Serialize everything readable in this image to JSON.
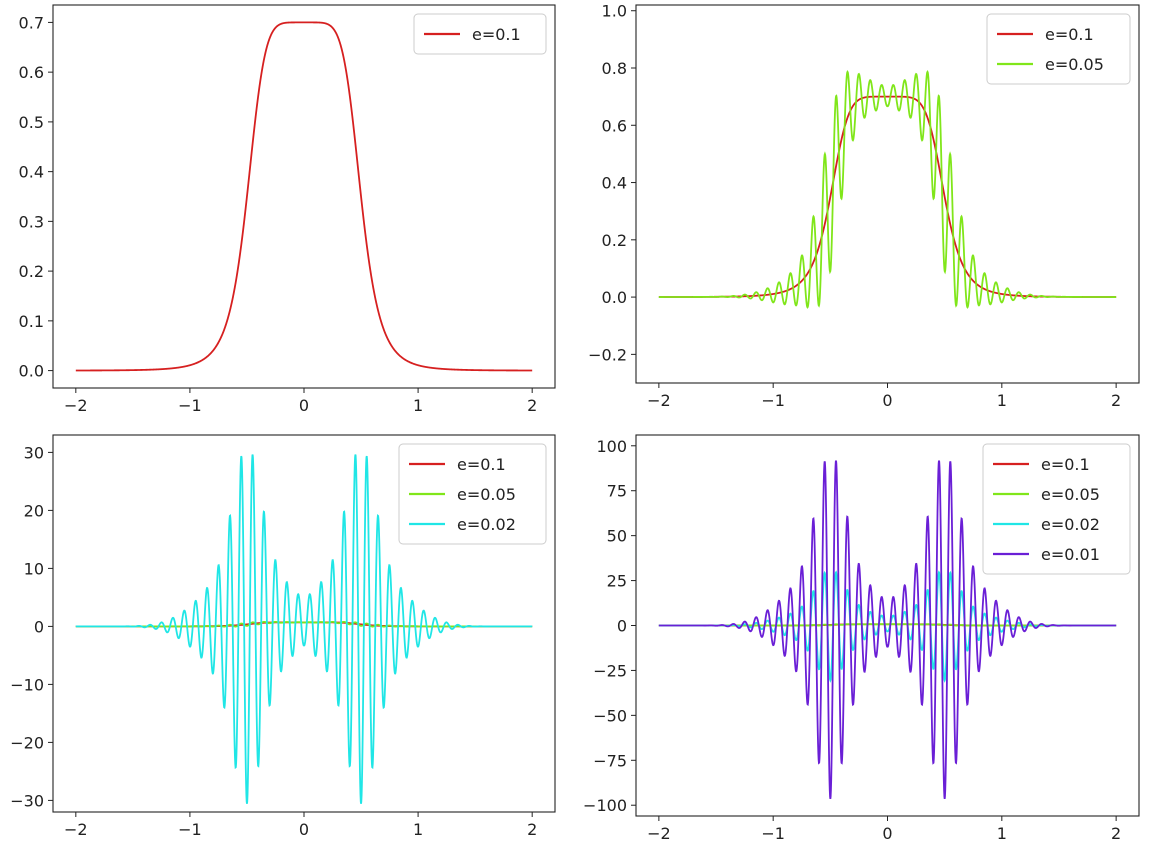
{
  "chart_data": [
    {
      "type": "line",
      "xlim": [
        -2.2,
        2.2
      ],
      "ylim": [
        -0.035,
        0.735
      ],
      "xticks": [
        -2,
        -1,
        0,
        1,
        2
      ],
      "xtick_labels": [
        "−2",
        "−1",
        "0",
        "1",
        "2"
      ],
      "yticks": [
        0.0,
        0.1,
        0.2,
        0.3,
        0.4,
        0.5,
        0.6,
        0.7
      ],
      "ytick_labels": [
        "0.0",
        "0.1",
        "0.2",
        "0.3",
        "0.4",
        "0.5",
        "0.6",
        "0.7"
      ],
      "legend_position": "top-right",
      "series": [
        {
          "name": "e=0.1",
          "color": "#d62020",
          "amplitude": 0,
          "peak": 0.7,
          "wave_number": 0
        }
      ]
    },
    {
      "type": "line",
      "xlim": [
        -2.2,
        2.2
      ],
      "ylim": [
        -0.3,
        1.02
      ],
      "xticks": [
        -2,
        -1,
        0,
        1,
        2
      ],
      "xtick_labels": [
        "−2",
        "−1",
        "0",
        "1",
        "2"
      ],
      "yticks": [
        -0.2,
        0.0,
        0.2,
        0.4,
        0.6,
        0.8,
        1.0
      ],
      "ytick_labels": [
        "−0.2",
        "0.0",
        "0.2",
        "0.4",
        "0.6",
        "0.8",
        "1.0"
      ],
      "legend_position": "top-right",
      "series": [
        {
          "name": "e=0.1",
          "color": "#d62020",
          "amplitude": 0,
          "peak": 0.7,
          "wave_number": 0
        },
        {
          "name": "e=0.05",
          "color": "#80e61a",
          "amplitude": 0.26,
          "peak": 0.7,
          "wave_number": 20
        }
      ]
    },
    {
      "type": "line",
      "xlim": [
        -2.2,
        2.2
      ],
      "ylim": [
        -32,
        33
      ],
      "xticks": [
        -2,
        -1,
        0,
        1,
        2
      ],
      "xtick_labels": [
        "−2",
        "−1",
        "0",
        "1",
        "2"
      ],
      "yticks": [
        -30,
        -20,
        -10,
        0,
        10,
        20,
        30
      ],
      "ytick_labels": [
        "−30",
        "−20",
        "−10",
        "0",
        "10",
        "20",
        "30"
      ],
      "legend_position": "top-right",
      "series": [
        {
          "name": "e=0.1",
          "color": "#d62020",
          "amplitude": 0,
          "peak": 0.7,
          "wave_number": 0
        },
        {
          "name": "e=0.05",
          "color": "#80e61a",
          "amplitude": 0.26,
          "peak": 0.7,
          "wave_number": 20
        },
        {
          "name": "e=0.02",
          "color": "#20e6e6",
          "amplitude": 31,
          "peak": 0.7,
          "wave_number": 20
        }
      ]
    },
    {
      "type": "line",
      "xlim": [
        -2.2,
        2.2
      ],
      "ylim": [
        -106,
        106
      ],
      "xticks": [
        -2,
        -1,
        0,
        1,
        2
      ],
      "xtick_labels": [
        "−2",
        "−1",
        "0",
        "1",
        "2"
      ],
      "yticks": [
        -100,
        -75,
        -50,
        -25,
        0,
        25,
        50,
        75,
        100
      ],
      "ytick_labels": [
        "−100",
        "−75",
        "−50",
        "−25",
        "0",
        "25",
        "50",
        "75",
        "100"
      ],
      "legend_position": "top-right",
      "series": [
        {
          "name": "e=0.1",
          "color": "#d62020",
          "amplitude": 0,
          "peak": 0.7,
          "wave_number": 0
        },
        {
          "name": "e=0.05",
          "color": "#80e61a",
          "amplitude": 0.26,
          "peak": 0.7,
          "wave_number": 20
        },
        {
          "name": "e=0.02",
          "color": "#20e6e6",
          "amplitude": 31,
          "peak": 0.7,
          "wave_number": 20
        },
        {
          "name": "e=0.01",
          "color": "#6a1fd6",
          "amplitude": 97,
          "peak": 0.7,
          "wave_number": 20
        }
      ]
    }
  ]
}
